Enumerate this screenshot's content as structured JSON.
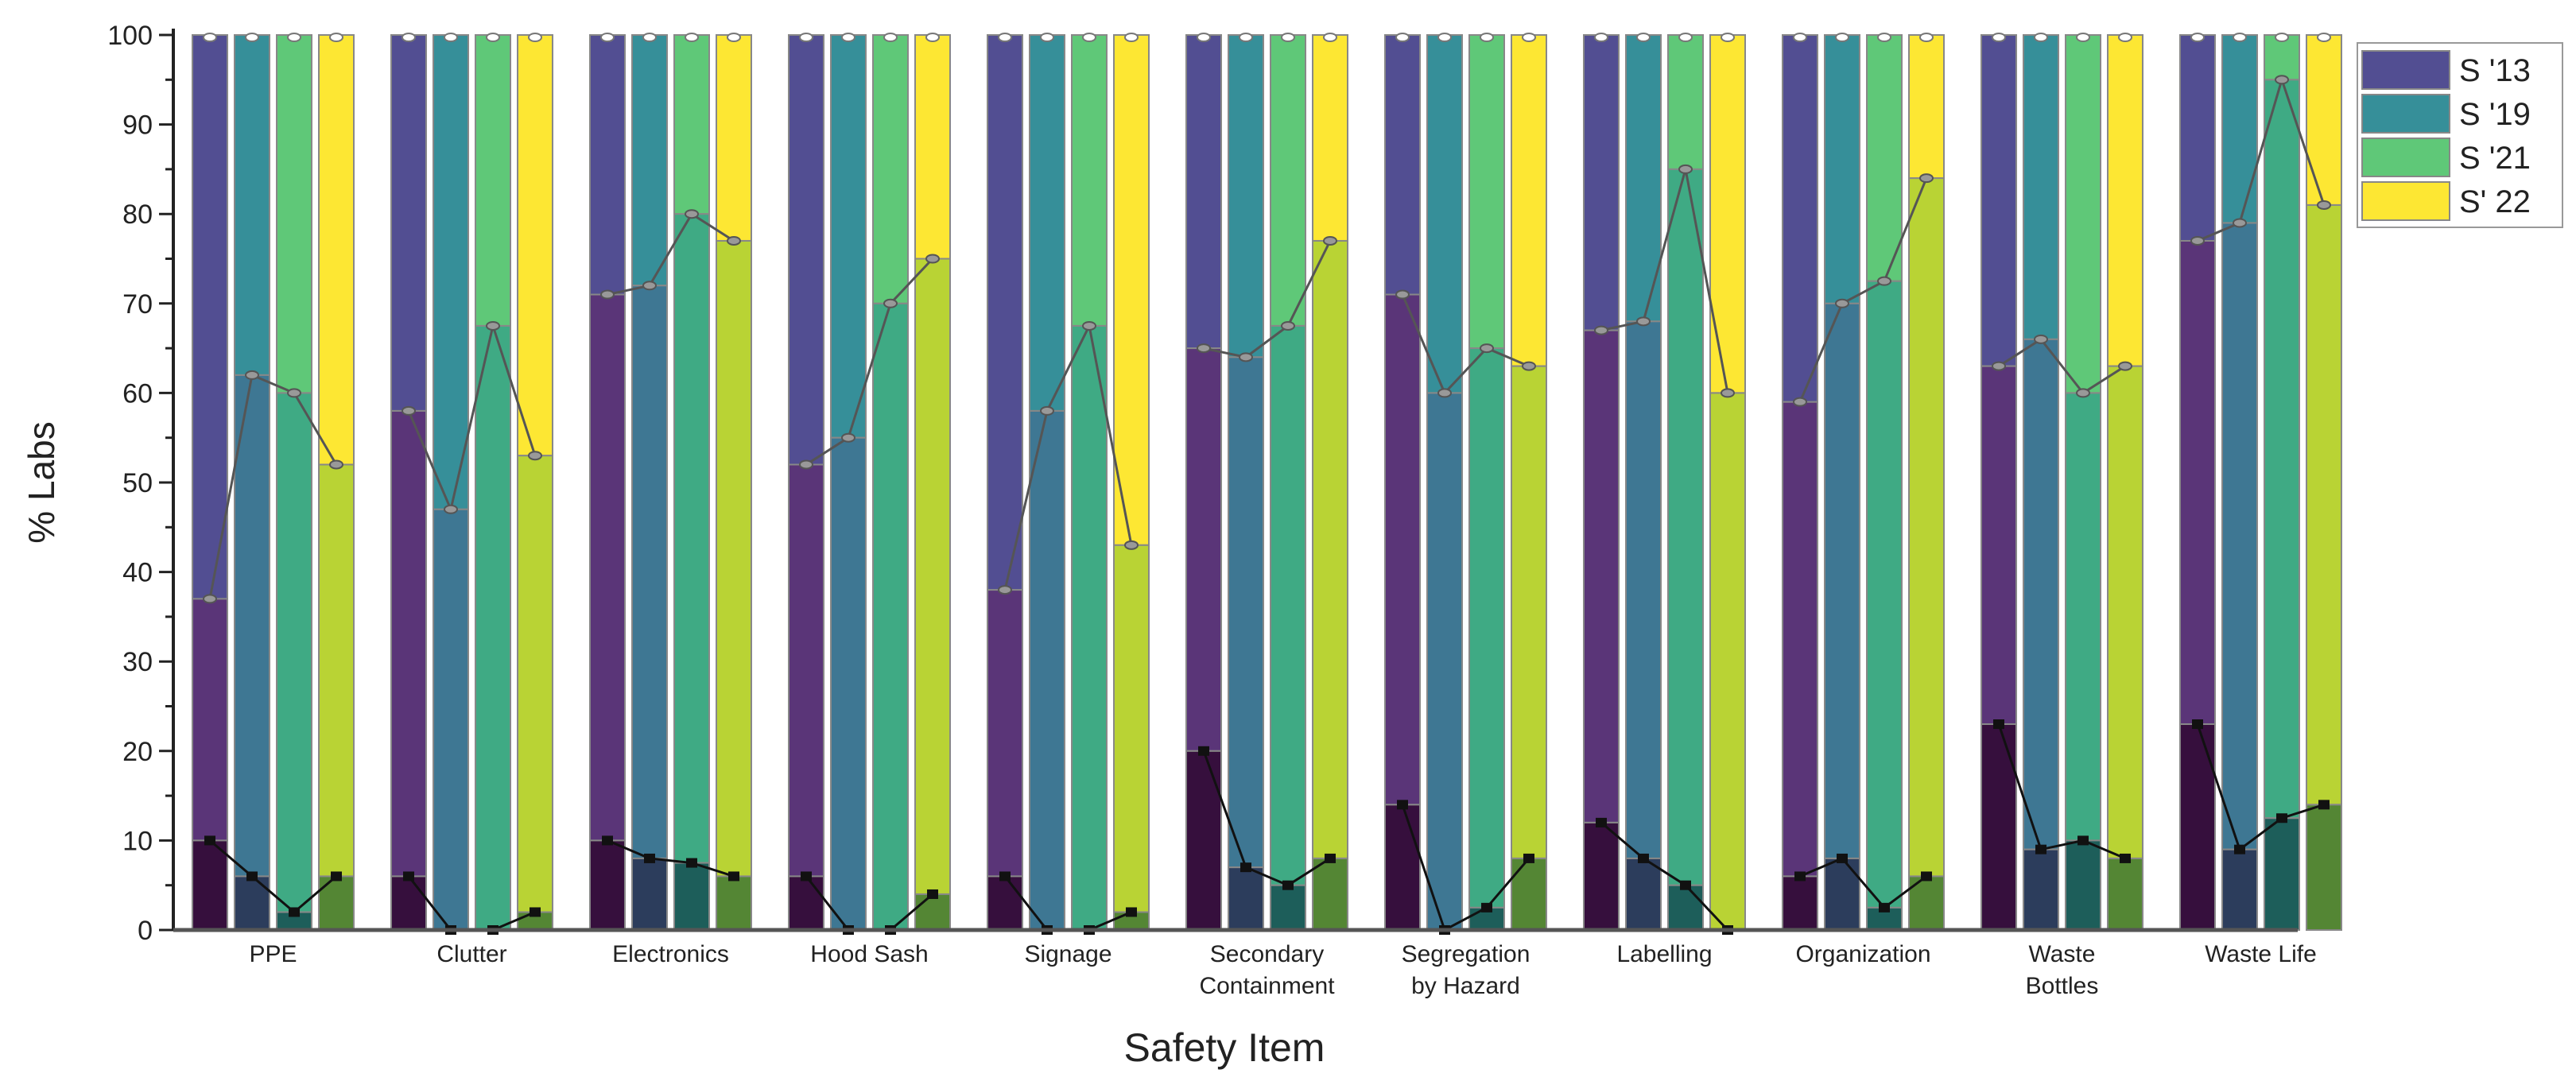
{
  "chart_data": {
    "type": "bar",
    "subtype": "stacked-grouped",
    "xlabel": "Safety Item",
    "ylabel": "% Labs",
    "ylim": [
      0,
      100
    ],
    "yticks": [
      0,
      10,
      20,
      30,
      40,
      50,
      60,
      70,
      80,
      90,
      100
    ],
    "grid": false,
    "legend_position": "top-right",
    "categories": [
      [
        "PPE"
      ],
      [
        "Clutter"
      ],
      [
        "Electronics"
      ],
      [
        "Hood Sash"
      ],
      [
        "Signage"
      ],
      [
        "Secondary",
        "Containment"
      ],
      [
        "Segregation",
        "by Hazard"
      ],
      [
        "Labelling"
      ],
      [
        "Organization"
      ],
      [
        "Waste",
        "Bottles"
      ],
      [
        "Waste Life"
      ]
    ],
    "series": [
      {
        "name": "S '13",
        "colors": {
          "top": "#524e92",
          "mid": "#5a3578",
          "bottom": "#360f3d"
        },
        "low": [
          10,
          6,
          10,
          6,
          6,
          20,
          14,
          12,
          6,
          23,
          23
        ],
        "mid": [
          37,
          58,
          71,
          52,
          38,
          65,
          71,
          67,
          59,
          63,
          77
        ],
        "top": [
          100,
          100,
          100,
          100,
          100,
          100,
          100,
          100,
          100,
          100,
          100
        ]
      },
      {
        "name": "S '19",
        "colors": {
          "top": "#368f99",
          "mid": "#3e7793",
          "bottom": "#2c3d5c"
        },
        "low": [
          6,
          0,
          8,
          0,
          0,
          7,
          0,
          8,
          8,
          9,
          9
        ],
        "mid": [
          62,
          47,
          72,
          55,
          58,
          64,
          60,
          68,
          70,
          66,
          79
        ],
        "top": [
          100,
          100,
          100,
          100,
          100,
          100,
          100,
          100,
          100,
          100,
          100
        ]
      },
      {
        "name": "S '21",
        "colors": {
          "top": "#5fc878",
          "mid": "#3faa84",
          "bottom": "#1d5e5a"
        },
        "low": [
          2,
          0,
          7.5,
          0,
          0,
          5,
          2.5,
          5,
          2.5,
          10,
          12.5
        ],
        "mid": [
          60,
          67.5,
          80,
          70,
          67.5,
          67.5,
          65,
          85,
          72.5,
          60,
          95
        ],
        "top": [
          100,
          100,
          100,
          100,
          100,
          100,
          100,
          100,
          100,
          100,
          100
        ]
      },
      {
        "name": "S' 22",
        "colors": {
          "top": "#fde733",
          "mid": "#b9d334",
          "bottom": "#548634"
        },
        "low": [
          6,
          2,
          6,
          4,
          2,
          8,
          8,
          0,
          6,
          8,
          14
        ],
        "mid": [
          52,
          53,
          77,
          75,
          43,
          77,
          63,
          60,
          84,
          63,
          81
        ],
        "top": [
          100,
          100,
          100,
          100,
          100,
          100,
          100,
          100,
          100,
          100,
          100
        ]
      }
    ]
  }
}
